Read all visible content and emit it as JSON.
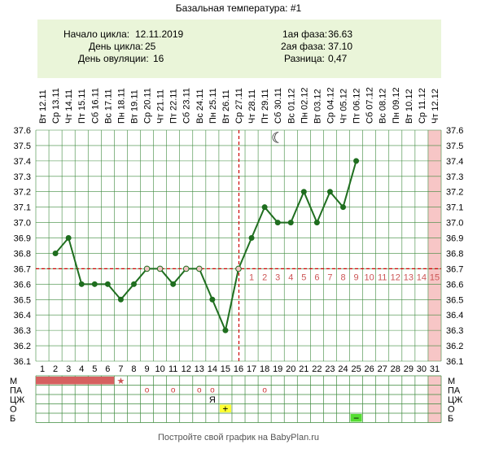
{
  "header": {
    "title": "Базальная температура: #1",
    "cycle_start_label": "Начало цикла:",
    "cycle_start": "12.11.2019",
    "cycle_day_label": "День цикла:",
    "cycle_day": "25",
    "ovulation_day_label": "День овуляции:",
    "ovulation_day": "16",
    "phase1_label": "1ая фаза:",
    "phase1": "36.63",
    "phase2_label": "2ая фаза:",
    "phase2": "37.10",
    "diff_label": "Разница:",
    "diff": "0,47"
  },
  "footer": {
    "text": "Постройте свой график на BabyPlan.ru"
  },
  "colors": {
    "line": "#1f6e1f",
    "coverline": "#cc0000",
    "grid": "#3d8a3d",
    "period_bar": "#d66060",
    "highlight_column": "#f7c6c6",
    "info_bg": "#eaf5d9",
    "day_number": "#cc5555",
    "marker_yellow": "#ffff33",
    "marker_green": "#55dd33"
  },
  "chart_data": {
    "type": "line",
    "title": "Базальная температура: #1",
    "x": [
      1,
      2,
      3,
      4,
      5,
      6,
      7,
      8,
      9,
      10,
      11,
      12,
      13,
      14,
      15,
      16,
      17,
      18,
      19,
      20,
      21,
      22,
      23,
      24,
      25,
      26,
      27,
      28,
      29,
      30,
      31
    ],
    "dates": [
      "Вт 12.11",
      "Ср 13.11",
      "Чт 14.11",
      "Пт 15.11",
      "Сб 16.11",
      "Вс 17.11",
      "Пн 18.11",
      "Вт 19.11",
      "Ср 20.11",
      "Чт 21.11",
      "Пт 22.11",
      "Сб 23.11",
      "Вс 24.11",
      "Пн 25.11",
      "Вт 26.11",
      "Ср 27.11",
      "Чт 28.11",
      "Пт 29.11",
      "Сб 30.11",
      "Вс 01.12",
      "Пн 02.12",
      "Вт 03.12",
      "Ср 04.12",
      "Чт 05.12",
      "Пт 06.12",
      "Сб 07.12",
      "Вс 08.12",
      "Пн 09.12",
      "Вт 10.12",
      "Ср 11.12",
      "Чт 12.12"
    ],
    "series": [
      {
        "values": [
          null,
          36.8,
          36.9,
          36.6,
          36.6,
          36.6,
          36.5,
          36.6,
          36.7,
          36.7,
          36.6,
          36.7,
          36.7,
          36.5,
          36.3,
          36.7,
          36.9,
          37.1,
          37.0,
          37.0,
          37.2,
          37.0,
          37.2,
          37.1,
          37.4,
          null,
          null,
          null,
          null,
          null,
          null
        ]
      }
    ],
    "y_ticks": [
      "36.1",
      "36.2",
      "36.3",
      "36.4",
      "36.5",
      "36.6",
      "36.7",
      "36.8",
      "36.9",
      "37.0",
      "37.1",
      "37.2",
      "37.3",
      "37.4",
      "37.5",
      "37.6"
    ],
    "ylim": [
      36.1,
      37.6
    ],
    "coverline": 36.7,
    "ovulation_day": 16,
    "luteal_day_numbers": [
      "1",
      "2",
      "3",
      "4",
      "5",
      "6",
      "7",
      "8",
      "9",
      "10",
      "11",
      "12",
      "13",
      "14",
      "15"
    ],
    "moon_symbol": "☾",
    "moon_day": 19,
    "highlight_day": 31,
    "grid": true,
    "rows": {
      "labels": [
        "М",
        "ПА",
        "ЦЖ",
        "О",
        "Б"
      ],
      "period_days": [
        1,
        2,
        3,
        4,
        5,
        6
      ],
      "period_star_day": 7,
      "period_star": "★",
      "pa_days": [
        9,
        11,
        13,
        14,
        18
      ],
      "pa_symbol": "o",
      "cervical": [
        {
          "day": 14,
          "text": "Я"
        }
      ],
      "ovulation_test": [
        {
          "day": 15,
          "text": "+"
        }
      ],
      "pregnancy_test": [
        {
          "day": 25,
          "text": "−"
        }
      ]
    }
  }
}
